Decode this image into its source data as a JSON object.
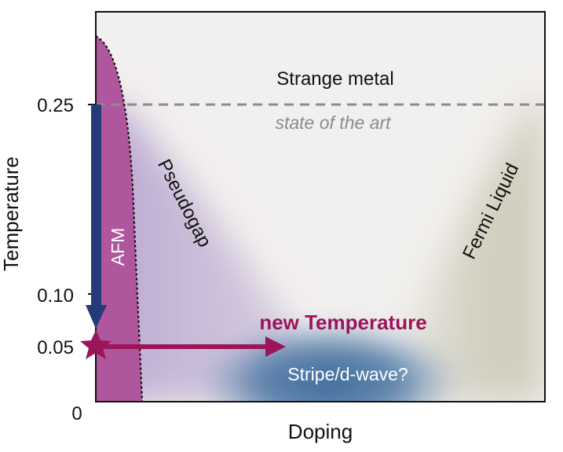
{
  "axes": {
    "x_label": "Doping",
    "y_label": "Temperature",
    "y_ticks": [
      "0.25",
      "0.10",
      "0.05",
      "0"
    ]
  },
  "regions": {
    "strange_metal": "Strange metal",
    "state_of_art": "state of the art",
    "pseudogap": "Pseudogap",
    "fermi_liquid": "Fermi Liquid",
    "afm": "AFM",
    "new_temperature": "new Temperature",
    "stripe": "Stripe/d-wave?"
  },
  "colors": {
    "background": "#f2f0ee",
    "afm": "#b0569d",
    "pseudogap": "#c6b6d6",
    "stripe": "#3c6a9a",
    "fermi_liquid": "#d3d0c1",
    "arrow_down": "#263a78",
    "arrow_right": "#9b1558",
    "title_accent": "#9b1558",
    "dashed_line": "#8c8c8c"
  }
}
